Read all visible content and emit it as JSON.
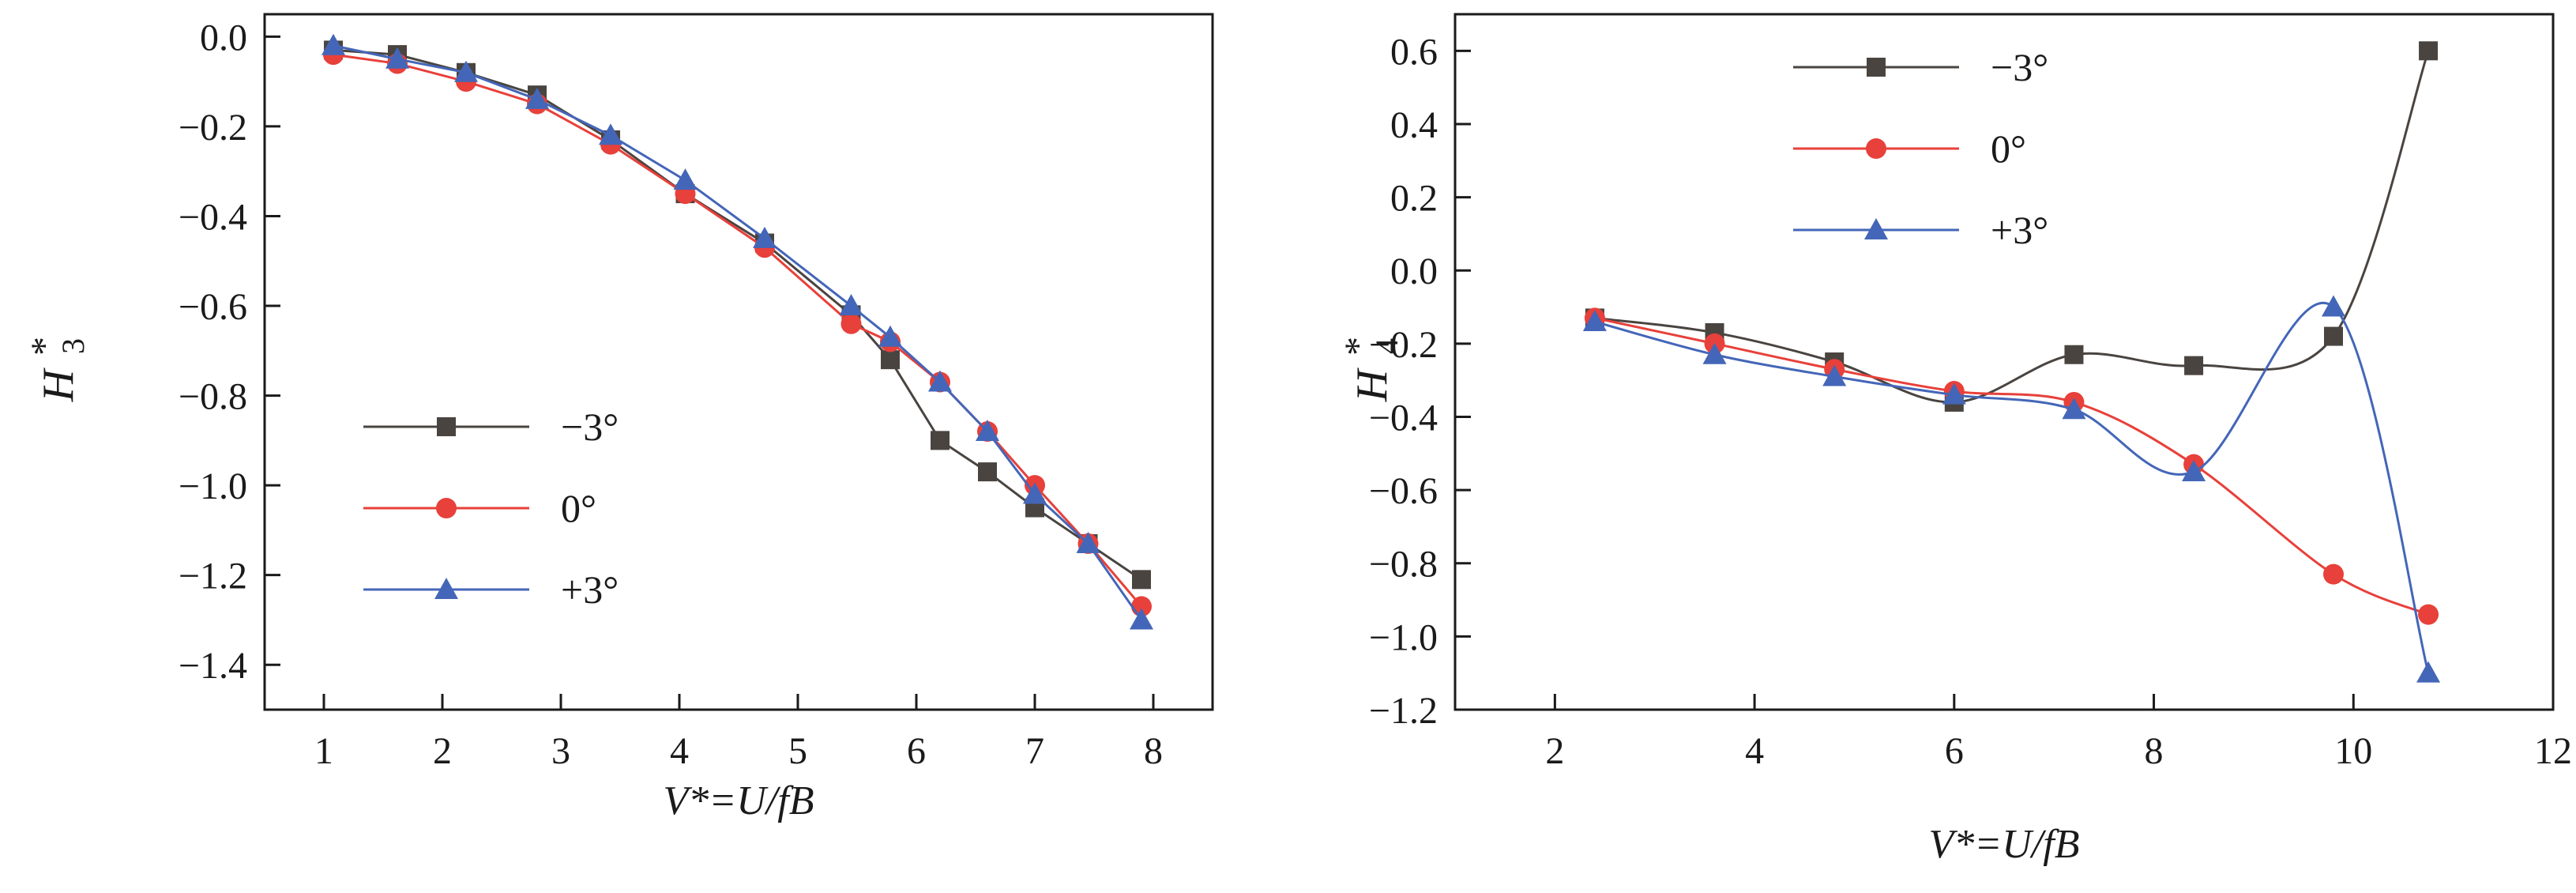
{
  "chart_data": [
    {
      "type": "line",
      "xlabel": "V*=U/fB",
      "ylabel": {
        "main": "H",
        "sub": "3",
        "sup": "*"
      },
      "xlim": [
        0.5,
        8.5
      ],
      "ylim": [
        -1.5,
        0.05
      ],
      "xticks": [
        1,
        2,
        3,
        4,
        5,
        6,
        7,
        8
      ],
      "yticks": [
        0.0,
        -0.2,
        -0.4,
        -0.6,
        -0.8,
        -1.0,
        -1.2,
        -1.4
      ],
      "ytick_labels": [
        "0.0",
        "−0.2",
        "−0.4",
        "−0.6",
        "−0.8",
        "−1.0",
        "−1.2",
        "−1.4"
      ],
      "legend_position": "lower-left",
      "smooth": false,
      "series": [
        {
          "name": "−3°",
          "marker": "square",
          "color": "#4a4440",
          "x": [
            1.08,
            1.62,
            2.2,
            2.8,
            3.42,
            4.05,
            4.72,
            5.45,
            5.78,
            6.2,
            6.6,
            7.0,
            7.45,
            7.9
          ],
          "y": [
            -0.03,
            -0.04,
            -0.08,
            -0.13,
            -0.23,
            -0.35,
            -0.46,
            -0.62,
            -0.72,
            -0.9,
            -0.97,
            -1.05,
            -1.13,
            -1.21
          ]
        },
        {
          "name": "0°",
          "marker": "circle",
          "color": "#e8403a",
          "x": [
            1.08,
            1.62,
            2.2,
            2.8,
            3.42,
            4.05,
            4.72,
            5.45,
            5.78,
            6.2,
            6.6,
            7.0,
            7.45,
            7.9
          ],
          "y": [
            -0.04,
            -0.06,
            -0.1,
            -0.15,
            -0.24,
            -0.35,
            -0.47,
            -0.64,
            -0.68,
            -0.77,
            -0.88,
            -1.0,
            -1.13,
            -1.27
          ]
        },
        {
          "name": "+3°",
          "marker": "triangle",
          "color": "#4466b8",
          "x": [
            1.08,
            1.62,
            2.2,
            2.8,
            3.42,
            4.05,
            4.72,
            5.45,
            5.78,
            6.2,
            6.6,
            7.0,
            7.45,
            7.9
          ],
          "y": [
            -0.02,
            -0.05,
            -0.08,
            -0.14,
            -0.22,
            -0.32,
            -0.45,
            -0.6,
            -0.67,
            -0.77,
            -0.88,
            -1.02,
            -1.13,
            -1.3
          ]
        }
      ]
    },
    {
      "type": "line",
      "xlabel": "V*=U/fB",
      "ylabel": {
        "main": "H",
        "sub": "4",
        "sup": "*"
      },
      "xlim": [
        1.0,
        12.0
      ],
      "ylim": [
        -1.2,
        0.7
      ],
      "xticks": [
        2,
        4,
        6,
        8,
        10,
        12
      ],
      "yticks": [
        0.6,
        0.4,
        0.2,
        0.0,
        -0.2,
        -0.4,
        -0.6,
        -0.8,
        -1.0,
        -1.2
      ],
      "ytick_labels": [
        "0.6",
        "0.4",
        "0.2",
        "0.0",
        "−0.2",
        "−0.4",
        "−0.6",
        "−0.8",
        "−1.0",
        "−1.2"
      ],
      "legend_position": "upper-left",
      "smooth": true,
      "series": [
        {
          "name": "−3°",
          "marker": "square",
          "color": "#4a4440",
          "x": [
            2.4,
            3.6,
            4.8,
            6.0,
            7.2,
            8.4,
            9.8,
            10.75
          ],
          "y": [
            -0.13,
            -0.17,
            -0.25,
            -0.36,
            -0.23,
            -0.26,
            -0.18,
            0.6
          ]
        },
        {
          "name": "0°",
          "marker": "circle",
          "color": "#e8403a",
          "x": [
            2.4,
            3.6,
            4.8,
            6.0,
            7.2,
            8.4,
            9.8,
            10.75
          ],
          "y": [
            -0.13,
            -0.2,
            -0.27,
            -0.33,
            -0.36,
            -0.53,
            -0.83,
            -0.94
          ]
        },
        {
          "name": "+3°",
          "marker": "triangle",
          "color": "#4466b8",
          "x": [
            2.4,
            3.6,
            4.8,
            6.0,
            7.2,
            8.4,
            9.8,
            10.75
          ],
          "y": [
            -0.14,
            -0.23,
            -0.29,
            -0.34,
            -0.38,
            -0.55,
            -0.1,
            -1.1
          ]
        }
      ]
    }
  ]
}
